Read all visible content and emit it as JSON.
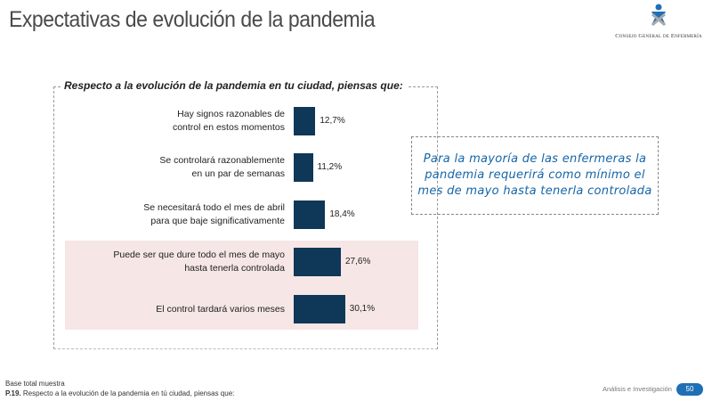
{
  "header": {
    "title": "Expectativas de evolución de la pandemia",
    "logo_text": "Consejo General de Enfermería"
  },
  "chart_data": {
    "type": "bar",
    "orientation": "horizontal",
    "title": "Respecto  a la evolución de la pandemia en tu ciudad, piensas que:",
    "categories": [
      "Hay signos razonables de control en estos momentos",
      "Se controlará razonablemente en un par de semanas",
      "Se necesitará todo el mes de abril para que baje significativamente",
      "Puede ser que dure todo el mes de mayo hasta tenerla controlada",
      "El control tardará varios meses"
    ],
    "category_lines": [
      [
        "Hay signos razonables de",
        "control en estos momentos"
      ],
      [
        "Se controlará razonablemente",
        "en un par de semanas"
      ],
      [
        "Se necesitará todo el mes de abril",
        "para que baje significativamente"
      ],
      [
        "Puede ser que dure todo el mes de mayo",
        "hasta tenerla controlada"
      ],
      [
        "El control tardará varios meses"
      ]
    ],
    "values": [
      12.7,
      11.2,
      18.4,
      27.6,
      30.1
    ],
    "value_labels": [
      "12,7%",
      "11,2%",
      "18,4%",
      "27,6%",
      "30,1%"
    ],
    "highlighted": [
      3,
      4
    ],
    "bar_color": "#0f3757",
    "highlight_color": "#f6e6e6"
  },
  "callout": {
    "text": "Para la mayoría de las enfermeras la pandemia requerirá como mínimo el mes de mayo hasta tenerla controlada"
  },
  "footer": {
    "base": "Base total muestra",
    "question_num": "P.19.",
    "question": " Respecto a la evolución de la pandemia en tú ciudad, piensas que:",
    "brand": "Análisis e Investigación",
    "page": "50"
  }
}
